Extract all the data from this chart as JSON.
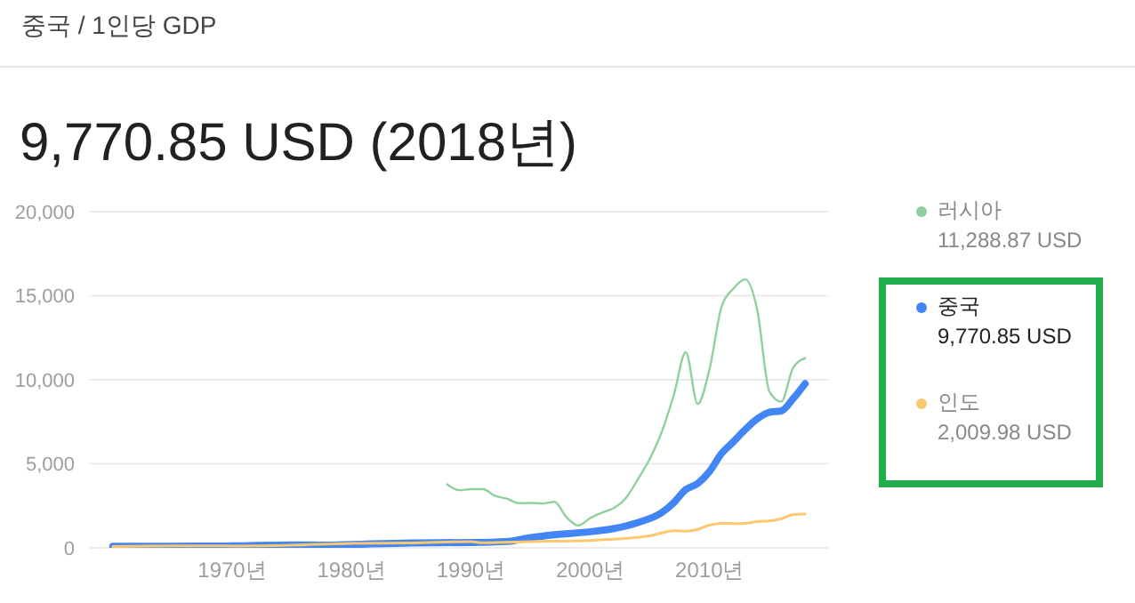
{
  "chart_data": {
    "type": "line",
    "title": "중국 / 1인당 GDP",
    "subtitle": "9,770.85 USD (2018년)",
    "annotations": [
      "11,288.87 USD",
      "9,770.85 USD",
      "2,009.98 USD"
    ],
    "xlim": [
      1958,
      2020
    ],
    "xticks": [
      {
        "value": 1970,
        "label": "1970년"
      },
      {
        "value": 1980,
        "label": "1980년"
      },
      {
        "value": 1990,
        "label": "1990년"
      },
      {
        "value": 2000,
        "label": "2000년"
      },
      {
        "value": 2010,
        "label": "2010년"
      }
    ],
    "ylim": [
      0,
      20000
    ],
    "yticks": [
      {
        "value": 0,
        "label": "0"
      },
      {
        "value": 5000,
        "label": "5,000"
      },
      {
        "value": 10000,
        "label": "10,000"
      },
      {
        "value": 15000,
        "label": "15,000"
      },
      {
        "value": 20000,
        "label": "20,000"
      }
    ],
    "grid": "y",
    "legend": "right",
    "marker": "none",
    "line_style": "solid",
    "series": [
      {
        "name": "러시아",
        "color": "#8fd19e",
        "x": [
          1988,
          1989,
          1990,
          1991,
          1992,
          1993,
          1994,
          1995,
          1996,
          1997,
          1998,
          1999,
          2000,
          2001,
          2002,
          2003,
          2004,
          2005,
          2006,
          2007,
          2008,
          2009,
          2010,
          2011,
          2012,
          2013,
          2014,
          2015,
          2016,
          2017,
          2018
        ],
        "values": [
          3780,
          3430,
          3490,
          3490,
          3100,
          2930,
          2660,
          2670,
          2640,
          2740,
          1830,
          1330,
          1770,
          2100,
          2380,
          2980,
          4100,
          5320,
          6920,
          9100,
          11640,
          8560,
          10670,
          14350,
          15430,
          15970,
          14100,
          9310,
          8700,
          10720,
          11288.87
        ]
      },
      {
        "name": "중국",
        "color": "#4285f4",
        "x": [
          1960,
          1965,
          1970,
          1975,
          1978,
          1980,
          1985,
          1990,
          1993,
          1995,
          1997,
          2000,
          2002,
          2004,
          2006,
          2007,
          2008,
          2009,
          2010,
          2011,
          2012,
          2013,
          2014,
          2015,
          2016,
          2017,
          2018
        ],
        "values": [
          90,
          98,
          113,
          178,
          156,
          195,
          294,
          318,
          377,
          610,
          782,
          959,
          1149,
          1509,
          2099,
          2694,
          3468,
          3832,
          4550,
          5618,
          6317,
          7051,
          7679,
          8067,
          8148,
          8879,
          9770.85
        ]
      },
      {
        "name": "인도",
        "color": "#fbc86f",
        "x": [
          1960,
          1965,
          1970,
          1975,
          1980,
          1985,
          1990,
          1991,
          1995,
          2000,
          2003,
          2005,
          2007,
          2008,
          2009,
          2010,
          2011,
          2012,
          2013,
          2014,
          2015,
          2016,
          2017,
          2018
        ],
        "values": [
          82,
          119,
          112,
          158,
          267,
          297,
          368,
          303,
          374,
          443,
          565,
          714,
          1023,
          998,
          1102,
          1358,
          1458,
          1444,
          1450,
          1574,
          1606,
          1733,
          1982,
          2009.98
        ]
      }
    ]
  }
}
